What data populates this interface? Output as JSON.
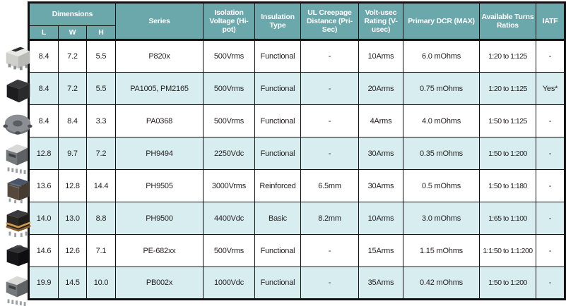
{
  "table": {
    "header": {
      "dimensions_label": "Dimensions",
      "dim_sub": [
        "L",
        "W",
        "H"
      ],
      "columns": [
        "Series",
        "Isolation Voltage (Hi-pot)",
        "Insulation Type",
        "UL Creepage Distance (Pri-Sec)",
        "Volt-usec Rating (V-usec)",
        "Primary DCR (MAX)",
        "Available Turns Ratios",
        "IATF"
      ]
    },
    "rows": [
      {
        "l": "8.4",
        "w": "7.2",
        "h": "5.5",
        "series": "P820x",
        "isolation": "500Vrms",
        "insulation": "Functional",
        "creepage": "-",
        "volt_usec": "10Arms",
        "dcr": "6.0 mOhms",
        "ratios": "1:20 to 1:125",
        "iatf": "-",
        "photo_variant": "smd-light"
      },
      {
        "l": "8.4",
        "w": "7.2",
        "h": "5.5",
        "series": "PA1005, PM2165",
        "isolation": "500Vrms",
        "insulation": "Functional",
        "creepage": "-",
        "volt_usec": "20Arms",
        "dcr": "0.75 mOhms",
        "ratios": "1:20 to 1:125",
        "iatf": "Yes*",
        "photo_variant": "chip-black"
      },
      {
        "l": "8.4",
        "w": "8.4",
        "h": "3.3",
        "series": "PA0368",
        "isolation": "500Vrms",
        "insulation": "Functional",
        "creepage": "-",
        "volt_usec": "4Arms",
        "dcr": "4.0 mOhms",
        "ratios": "1:50 to 1:125",
        "iatf": "-",
        "photo_variant": "toroid-gray"
      },
      {
        "l": "12.8",
        "w": "9.7",
        "h": "7.2",
        "series": "PH9494",
        "isolation": "2250Vdc",
        "insulation": "Functional",
        "creepage": "-",
        "volt_usec": "30Arms",
        "dcr": "0.35 mOhms",
        "ratios": "1:50 to 1:200",
        "iatf": "-",
        "photo_variant": "ep-gray"
      },
      {
        "l": "13.6",
        "w": "12.8",
        "h": "14.4",
        "series": "PH9505",
        "isolation": "3000Vrms",
        "insulation": "Reinforced",
        "creepage": "6.5mm",
        "volt_usec": "30Arms",
        "dcr": "0.5 mOhms",
        "ratios": "1:50 to 1:180",
        "iatf": "-",
        "photo_variant": "cube-dark"
      },
      {
        "l": "14.0",
        "w": "13.0",
        "h": "8.8",
        "series": "PH9500",
        "isolation": "4400Vdc",
        "insulation": "Basic",
        "creepage": "8.2mm",
        "volt_usec": "10Arms",
        "dcr": "3.0 mOhms",
        "ratios": "1:65 to 1:100",
        "iatf": "-",
        "photo_variant": "layered-gold"
      },
      {
        "l": "14.6",
        "w": "12.6",
        "h": "7.1",
        "series": "PE-682xx",
        "isolation": "500Vrms",
        "insulation": "Functional",
        "creepage": "-",
        "volt_usec": "15Arms",
        "dcr": "1.15 mOhms",
        "ratios": "1:1:50 to 1:1:200",
        "iatf": "-",
        "photo_variant": "black-gloss"
      },
      {
        "l": "19.9",
        "w": "14.5",
        "h": "10.0",
        "series": "PB002x",
        "isolation": "1000Vdc",
        "insulation": "Functional",
        "creepage": "-",
        "volt_usec": "35Arms",
        "dcr": "0.42 mOhms",
        "ratios": "1:50 to 1:200",
        "iatf": "-",
        "photo_variant": "ep-gray"
      }
    ]
  },
  "colors": {
    "header_teal": "#6aa8ac",
    "row_alt_cyan": "#d8edf0",
    "row_white": "#ffffff",
    "border_black": "#101010",
    "text": "#231f20",
    "header_text": "#ffffff"
  }
}
